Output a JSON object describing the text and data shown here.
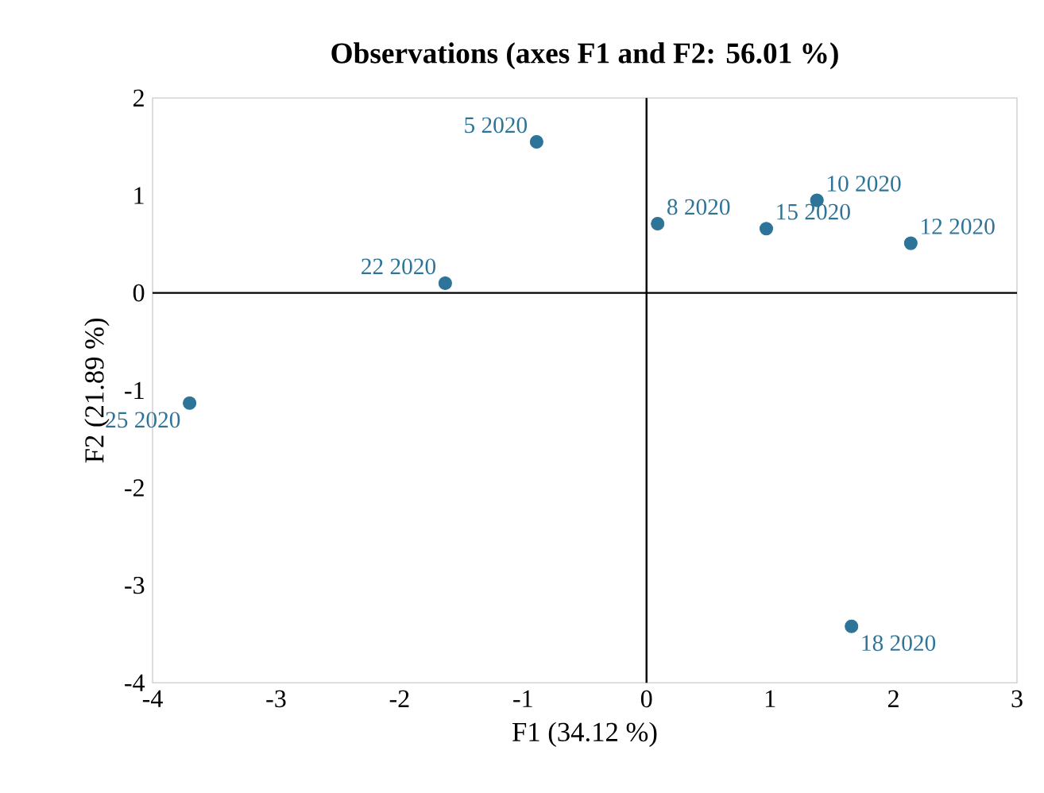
{
  "chart_data": {
    "type": "scatter",
    "title": "Observations (axes F1 and F2: 56.01 %)",
    "xlabel": "F1 (34.12 %)",
    "ylabel": "F2 (21.89 %)",
    "x": [
      -0.89,
      0.09,
      0.97,
      1.38,
      2.14,
      -1.63,
      -3.7,
      1.66
    ],
    "series": [
      {
        "color": "#2e7498",
        "values": [
          1.55,
          0.71,
          0.66,
          0.95,
          0.51,
          0.1,
          -1.13,
          -3.42
        ]
      }
    ],
    "annotations": [
      {
        "text": "5 2020",
        "x": -0.89,
        "y": 1.55
      },
      {
        "text": "8 2020",
        "x": 0.09,
        "y": 0.71
      },
      {
        "text": "15 2020",
        "x": 0.97,
        "y": 0.66
      },
      {
        "text": "10 2020",
        "x": 1.38,
        "y": 0.95
      },
      {
        "text": "12 2020",
        "x": 2.14,
        "y": 0.51
      },
      {
        "text": "22 2020",
        "x": -1.63,
        "y": 0.1
      },
      {
        "text": "25 2020",
        "x": -3.7,
        "y": -1.13
      },
      {
        "text": "18 2020",
        "x": 1.66,
        "y": -3.42
      }
    ],
    "xlim": [
      -4,
      3
    ],
    "ylim": [
      -4,
      2
    ],
    "xticks": [
      -4,
      -3,
      -2,
      -1,
      0,
      1,
      2,
      3
    ],
    "yticks": [
      -4,
      -3,
      -2,
      -1,
      0,
      1,
      2
    ],
    "marker": "circle"
  }
}
